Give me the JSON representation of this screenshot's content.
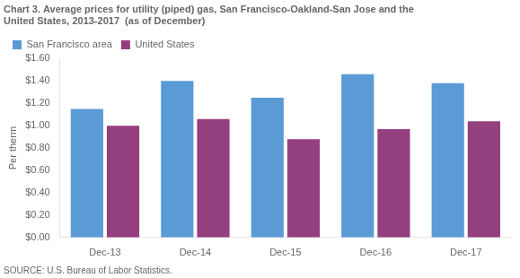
{
  "chart_data": {
    "type": "bar",
    "title": [
      "Chart 3. Average prices for utility (piped) gas, San Francisco-Oakland-San Jose and the",
      "United States, 2013-2017  (as of December)"
    ],
    "ylabel": "Per therm",
    "source": "SOURCE: U.S. Bureau of Labor Statistics.",
    "categories": [
      "Dec-13",
      "Dec-14",
      "Dec-15",
      "Dec-16",
      "Dec-17"
    ],
    "series": [
      {
        "name": "San Francisco area",
        "color": "#5B9BD5",
        "values": [
          1.15,
          1.4,
          1.25,
          1.46,
          1.38
        ]
      },
      {
        "name": "United States",
        "color": "#943F7E",
        "values": [
          1.0,
          1.06,
          0.88,
          0.97,
          1.04
        ]
      }
    ],
    "ylim": [
      0.0,
      1.6
    ],
    "yticks": [
      {
        "value": 0.0,
        "label": "$0.00"
      },
      {
        "value": 0.2,
        "label": "$0.20"
      },
      {
        "value": 0.4,
        "label": "$0.40"
      },
      {
        "value": 0.6,
        "label": "$0.60"
      },
      {
        "value": 0.8,
        "label": "$0.80"
      },
      {
        "value": 1.0,
        "label": "$1.00"
      },
      {
        "value": 1.2,
        "label": "$1.20"
      },
      {
        "value": 1.4,
        "label": "$1.40"
      },
      {
        "value": 1.6,
        "label": "$1.60"
      }
    ],
    "grid": false,
    "legend": "upper left"
  }
}
